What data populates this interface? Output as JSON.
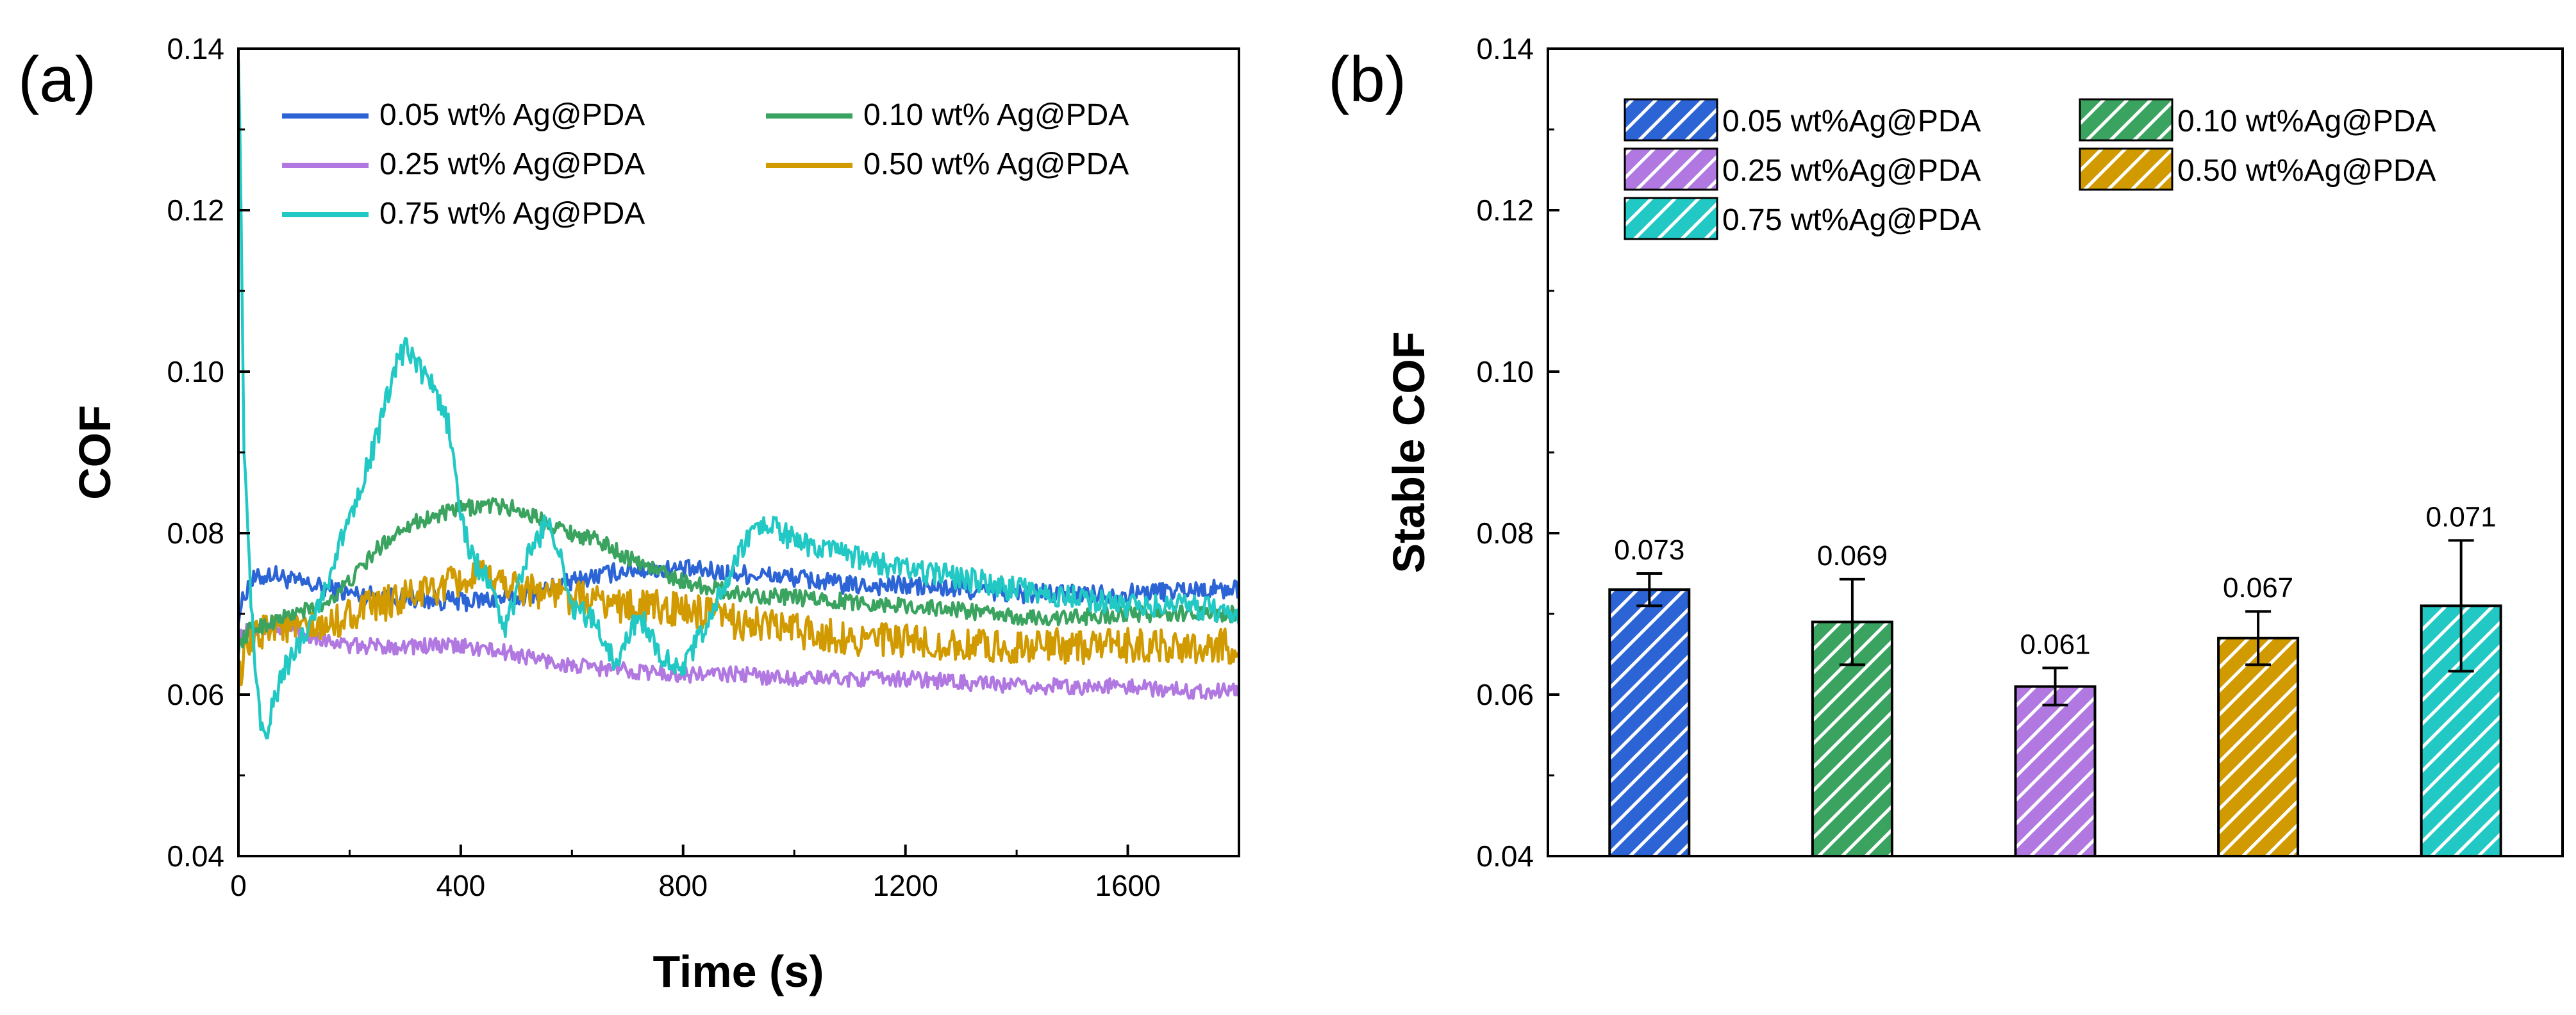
{
  "chart_data": [
    {
      "panel": "(a)",
      "type": "line",
      "xlabel": "Time (s)",
      "ylabel": "COF",
      "xlim": [
        0,
        1800
      ],
      "ylim": [
        0.04,
        0.14
      ],
      "xticks": [
        "0",
        "400",
        "800",
        "1200",
        "1600"
      ],
      "xtick_values": [
        0,
        400,
        800,
        1200,
        1600
      ],
      "yticks": [
        "0.04",
        "0.06",
        "0.08",
        "0.10",
        "0.12",
        "0.14"
      ],
      "ytick_values": [
        0.04,
        0.06,
        0.08,
        0.1,
        0.12,
        0.14
      ],
      "legend_position": "top",
      "series": [
        {
          "name": "0.05 wt% Ag@PDA",
          "color": "#2c64d6",
          "noise": 0.0012,
          "x": [
            0,
            20,
            60,
            100,
            200,
            300,
            400,
            500,
            600,
            700,
            800,
            900,
            1000,
            1100,
            1200,
            1300,
            1400,
            1500,
            1600,
            1700,
            1800
          ],
          "y": [
            0.07,
            0.074,
            0.075,
            0.074,
            0.0725,
            0.072,
            0.0715,
            0.072,
            0.074,
            0.0755,
            0.0755,
            0.075,
            0.0745,
            0.0735,
            0.0735,
            0.073,
            0.0725,
            0.0725,
            0.0725,
            0.073,
            0.073
          ]
        },
        {
          "name": "0.10 wt% Ag@PDA",
          "color": "#3aa35f",
          "noise": 0.001,
          "x": [
            0,
            20,
            60,
            100,
            150,
            200,
            250,
            300,
            350,
            400,
            450,
            500,
            550,
            600,
            650,
            700,
            750,
            800,
            900,
            1000,
            1100,
            1200,
            1300,
            1400,
            1500,
            1600,
            1700,
            1800
          ],
          "y": [
            0.066,
            0.068,
            0.069,
            0.07,
            0.071,
            0.074,
            0.078,
            0.081,
            0.082,
            0.083,
            0.0835,
            0.083,
            0.0815,
            0.08,
            0.079,
            0.077,
            0.0755,
            0.074,
            0.0725,
            0.072,
            0.0715,
            0.071,
            0.0705,
            0.0695,
            0.0695,
            0.07,
            0.07,
            0.07
          ]
        },
        {
          "name": "0.25 wt% Ag@PDA",
          "color": "#b078e0",
          "noise": 0.001,
          "x": [
            0,
            20,
            60,
            100,
            150,
            200,
            300,
            400,
            500,
            600,
            700,
            800,
            900,
            1000,
            1100,
            1200,
            1300,
            1400,
            1500,
            1600,
            1700,
            1800
          ],
          "y": [
            0.067,
            0.068,
            0.0685,
            0.068,
            0.067,
            0.066,
            0.066,
            0.066,
            0.065,
            0.0635,
            0.063,
            0.0625,
            0.0625,
            0.062,
            0.062,
            0.062,
            0.0615,
            0.061,
            0.061,
            0.061,
            0.0605,
            0.0605
          ]
        },
        {
          "name": "0.50 wt% Ag@PDA",
          "color": "#d09a00",
          "noise": 0.0022,
          "x": [
            0,
            20,
            60,
            100,
            150,
            200,
            300,
            400,
            450,
            500,
            600,
            700,
            800,
            900,
            1000,
            1100,
            1200,
            1300,
            1400,
            1500,
            1600,
            1700,
            1800
          ],
          "y": [
            0.062,
            0.066,
            0.069,
            0.068,
            0.068,
            0.07,
            0.072,
            0.074,
            0.0745,
            0.0735,
            0.072,
            0.071,
            0.0705,
            0.069,
            0.068,
            0.067,
            0.0665,
            0.066,
            0.066,
            0.066,
            0.066,
            0.066,
            0.066
          ]
        },
        {
          "name": "0.75 wt% Ag@PDA",
          "color": "#22c9c4",
          "noise": 0.0015,
          "x": [
            0,
            4,
            10,
            20,
            30,
            40,
            50,
            60,
            80,
            100,
            150,
            200,
            250,
            280,
            300,
            330,
            350,
            380,
            400,
            420,
            450,
            480,
            520,
            560,
            600,
            640,
            680,
            720,
            760,
            800,
            850,
            900,
            930,
            960,
            1000,
            1050,
            1100,
            1200,
            1300,
            1400,
            1500,
            1600,
            1700,
            1800
          ],
          "y": [
            0.14,
            0.125,
            0.09,
            0.075,
            0.062,
            0.057,
            0.054,
            0.058,
            0.063,
            0.065,
            0.072,
            0.082,
            0.092,
            0.1,
            0.103,
            0.1,
            0.098,
            0.093,
            0.082,
            0.077,
            0.074,
            0.068,
            0.077,
            0.082,
            0.071,
            0.069,
            0.064,
            0.07,
            0.065,
            0.063,
            0.07,
            0.077,
            0.081,
            0.081,
            0.079,
            0.078,
            0.077,
            0.0755,
            0.0745,
            0.073,
            0.072,
            0.071,
            0.071,
            0.07
          ]
        }
      ]
    },
    {
      "panel": "(b)",
      "type": "bar",
      "ylabel": "Stable COF",
      "ylim": [
        0.04,
        0.14
      ],
      "yticks": [
        "0.04",
        "0.06",
        "0.08",
        "0.10",
        "0.12",
        "0.14"
      ],
      "ytick_values": [
        0.04,
        0.06,
        0.08,
        0.1,
        0.12,
        0.14
      ],
      "pattern": "diagonal-hatch",
      "legend_position": "top",
      "categories": [
        "0.05 wt%Ag@PDA",
        "0.10 wt%Ag@PDA",
        "0.25 wt%Ag@PDA",
        "0.50 wt%Ag@PDA",
        "0.75 wt%Ag@PDA"
      ],
      "values": [
        0.073,
        0.069,
        0.061,
        0.067,
        0.071
      ],
      "value_labels": [
        "0.073",
        "0.069",
        "0.061",
        "0.067",
        "0.071"
      ],
      "errors": [
        0.002,
        0.0053,
        0.0023,
        0.0033,
        0.0081
      ],
      "colors": [
        "#2c64d6",
        "#3aa35f",
        "#b078e0",
        "#d09a00",
        "#22c9c4"
      ]
    }
  ]
}
